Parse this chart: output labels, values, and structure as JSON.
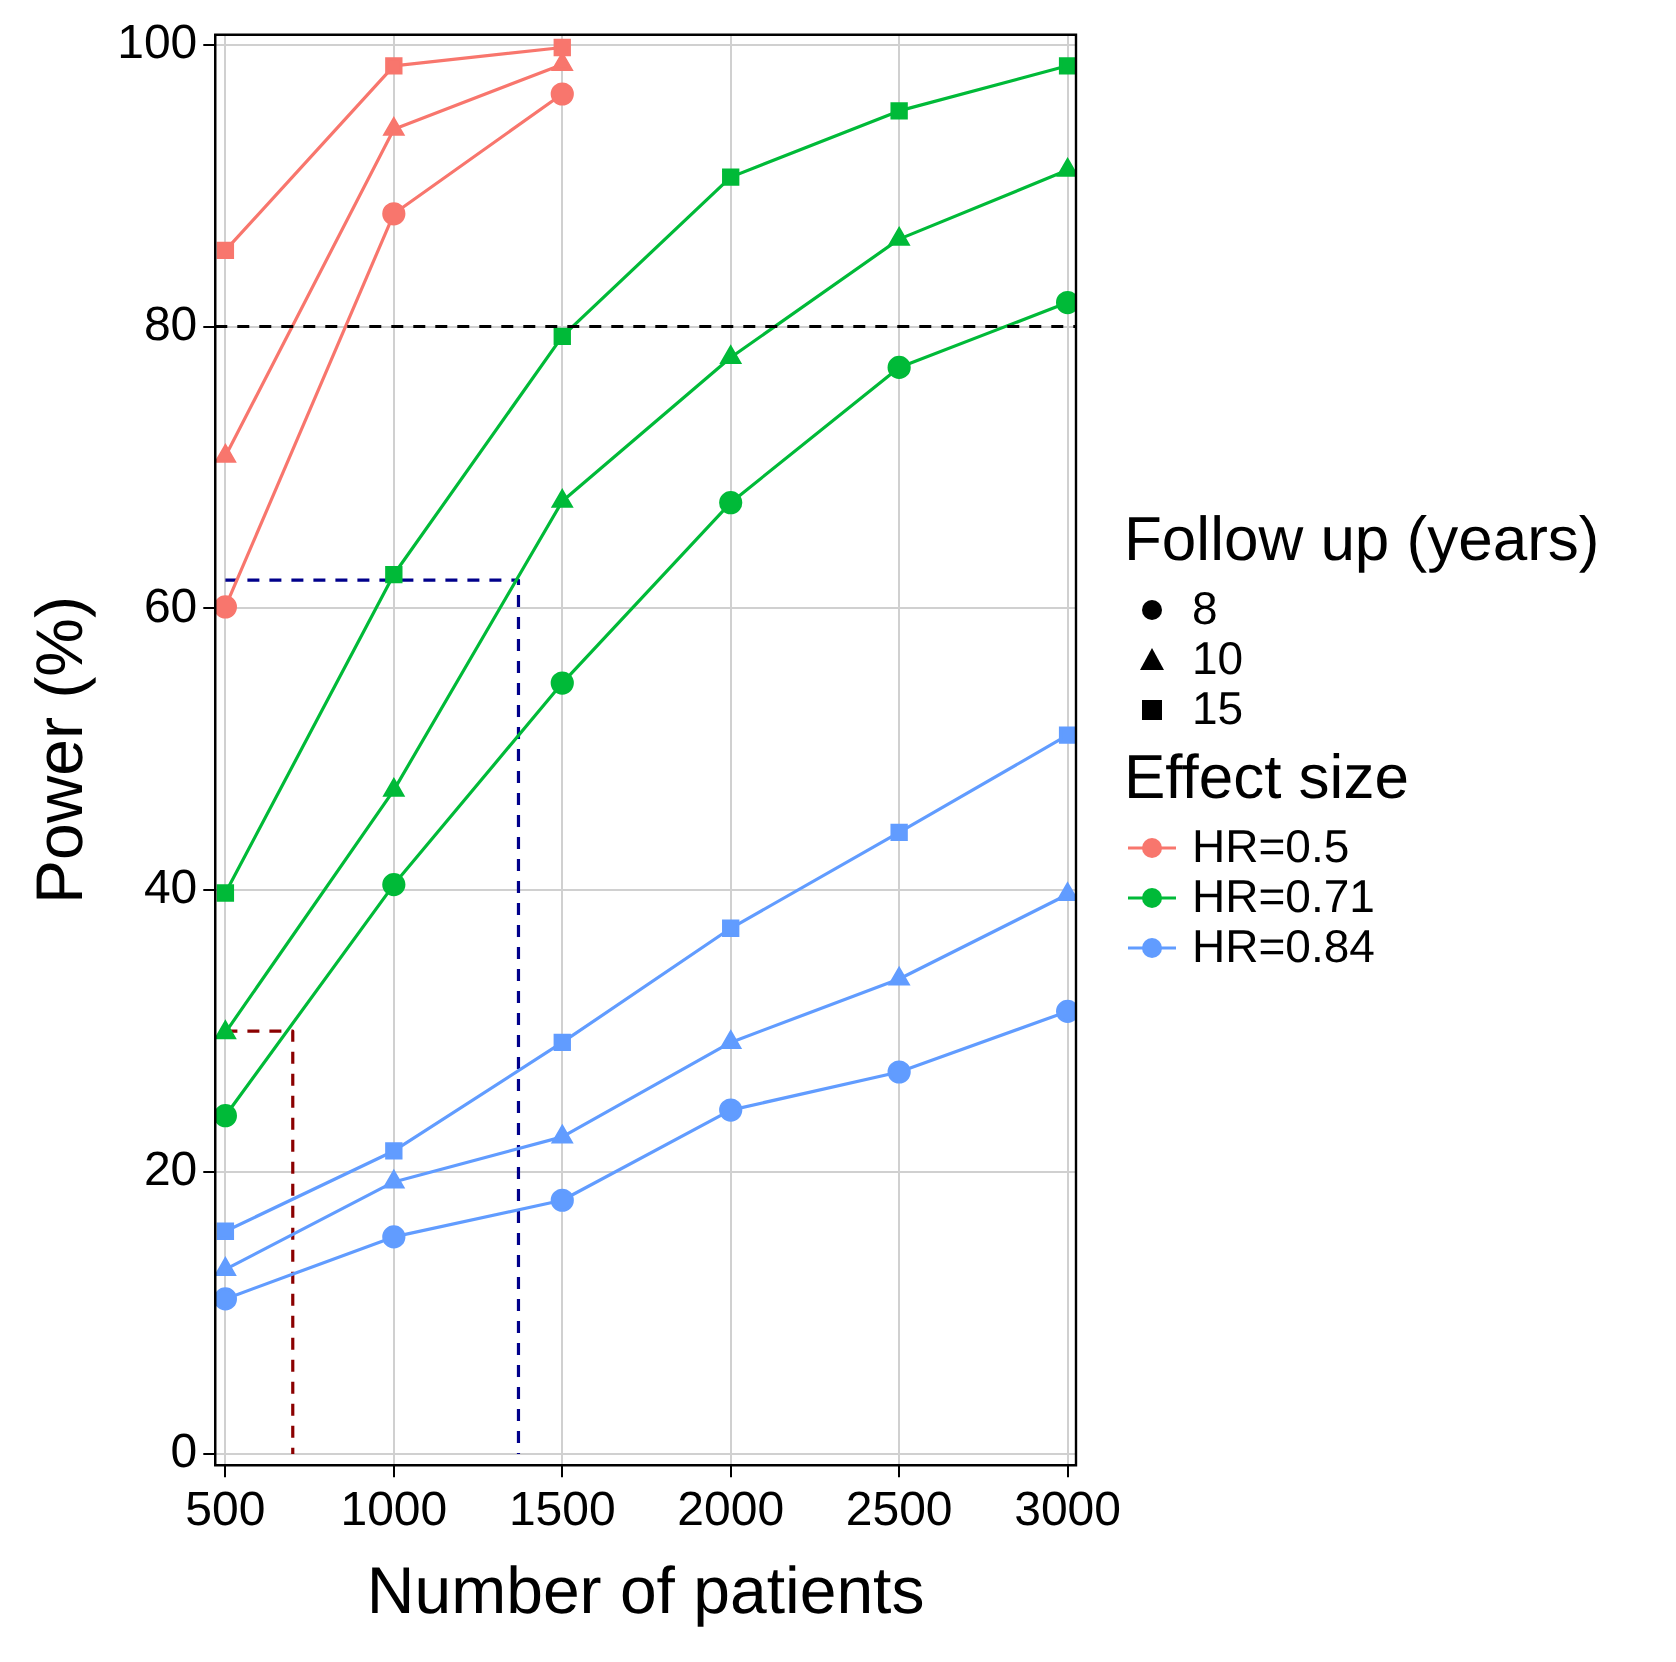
{
  "chart_data": {
    "type": "line",
    "xlabel": "Number of patients",
    "ylabel": "Power (%)",
    "legend_title": "Follow up (years)",
    "annotations": [
      "Effect size"
    ],
    "x": [
      500,
      1000,
      1500,
      2000,
      2500,
      3000
    ],
    "xlim": [
      470,
      3025
    ],
    "xticks": [
      500,
      1000,
      1500,
      2000,
      2500,
      3000
    ],
    "ylim": [
      -0.8,
      100.7
    ],
    "yticks": [
      0,
      20,
      40,
      60,
      80,
      100
    ],
    "grid": true,
    "legend": "right",
    "ref_lines": [
      {
        "axis": "y",
        "value": 80,
        "color": "#000000",
        "line_style": "dashed"
      }
    ],
    "series": [
      {
        "color": "#f8766d",
        "marker": "square",
        "values": [
          85.4,
          98.5,
          99.8,
          null,
          null,
          null
        ]
      },
      {
        "color": "#f8766d",
        "marker": "triangle",
        "values": [
          70.8,
          94.0,
          98.6,
          null,
          null,
          null
        ]
      },
      {
        "color": "#f8766d",
        "marker": "circle",
        "values": [
          60.1,
          88.0,
          96.5,
          null,
          null,
          null
        ]
      },
      {
        "color": "#00ba38",
        "marker": "square",
        "values": [
          39.8,
          62.4,
          79.3,
          90.6,
          95.3,
          98.5
        ]
      },
      {
        "color": "#00ba38",
        "marker": "triangle",
        "values": [
          29.9,
          47.1,
          67.6,
          77.8,
          86.2,
          91.1
        ]
      },
      {
        "color": "#00ba38",
        "marker": "circle",
        "values": [
          24.0,
          40.4,
          54.7,
          67.5,
          77.1,
          81.7
        ]
      },
      {
        "color": "#619cff",
        "marker": "square",
        "values": [
          15.8,
          21.5,
          29.2,
          37.3,
          44.1,
          51.0
        ]
      },
      {
        "color": "#619cff",
        "marker": "triangle",
        "values": [
          13.1,
          19.3,
          22.5,
          29.2,
          33.7,
          39.7
        ]
      },
      {
        "color": "#619cff",
        "marker": "circle",
        "values": [
          11.0,
          15.4,
          18.0,
          24.4,
          27.1,
          31.4
        ]
      },
      {
        "color": "#00008b",
        "marker": "none",
        "line_style": "dashed",
        "x": [
          500,
          1370,
          1370
        ],
        "values": [
          62,
          62,
          0
        ]
      },
      {
        "color": "#8b0000",
        "marker": "none",
        "line_style": "dashed",
        "x": [
          500,
          700,
          700
        ],
        "values": [
          30,
          30,
          0
        ]
      },
      {
        "name": "8",
        "color": "#000000",
        "marker": "circle",
        "line_style": "none",
        "values": [
          null,
          null,
          null,
          null,
          null,
          null
        ]
      },
      {
        "name": "10",
        "color": "#000000",
        "marker": "triangle",
        "line_style": "none",
        "values": [
          null,
          null,
          null,
          null,
          null,
          null
        ]
      },
      {
        "name": "15",
        "color": "#000000",
        "marker": "square",
        "line_style": "none",
        "values": [
          null,
          null,
          null,
          null,
          null,
          null
        ]
      },
      {
        "name": "HR=0.5",
        "color": "#f8766d",
        "marker": "circle",
        "line_style": "solid",
        "values": [
          null,
          null,
          null,
          null,
          null,
          null
        ]
      },
      {
        "name": "HR=0.71",
        "color": "#00ba38",
        "marker": "circle",
        "line_style": "solid",
        "values": [
          null,
          null,
          null,
          null,
          null,
          null
        ]
      },
      {
        "name": "HR=0.84",
        "color": "#619cff",
        "marker": "circle",
        "line_style": "solid",
        "values": [
          null,
          null,
          null,
          null,
          null,
          null
        ]
      }
    ]
  }
}
